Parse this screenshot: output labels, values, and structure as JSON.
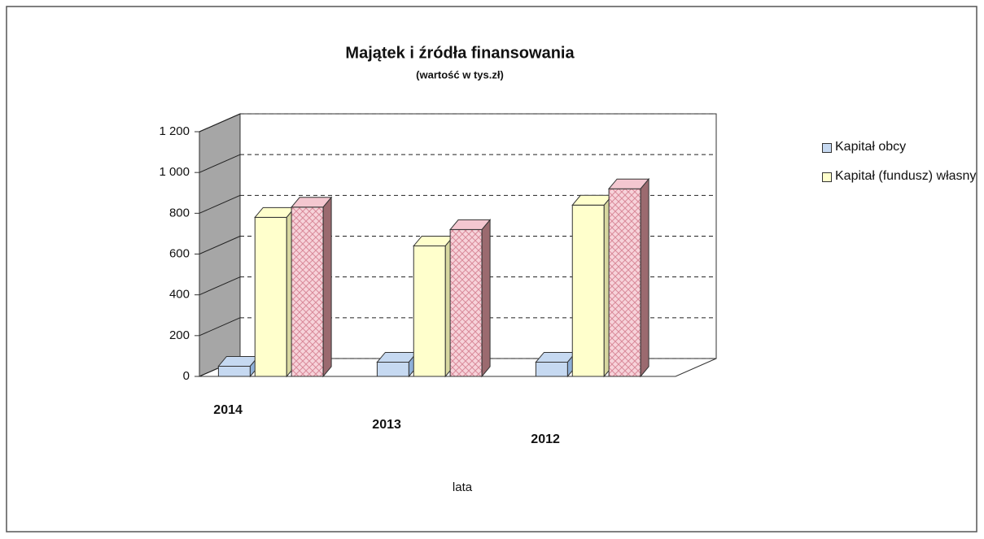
{
  "chart_data": {
    "type": "bar3d",
    "title": "Majątek i źródła finansowania",
    "subtitle": "(wartość w tys.zł)",
    "x_label": "lata",
    "categories": [
      "2014",
      "2013",
      "2012"
    ],
    "series": [
      {
        "name": "Kapitał obcy",
        "color": "#c6d9f1",
        "values": [
          50,
          70,
          70
        ]
      },
      {
        "name": "Kapitał (fundusz) własny",
        "color": "#ffffcc",
        "values": [
          780,
          640,
          840
        ]
      },
      {
        "color": "#f4c7d0",
        "values": [
          830,
          720,
          920
        ]
      }
    ],
    "ylim": [
      0,
      1200
    ],
    "yticks": [
      0,
      200,
      400,
      600,
      800,
      {
        "value": 1000,
        "label": "1 000"
      },
      {
        "value": 1200,
        "label": "1 200"
      }
    ],
    "grid": true,
    "legend": "right"
  }
}
